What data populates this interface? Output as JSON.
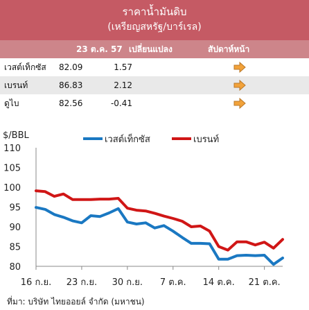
{
  "table": {
    "title": "ราคาน้ำมันดิบ",
    "subtitle": "(เหรียญสหรัฐ/บาร์เรล)",
    "headers": {
      "date": "23 ต.ค. 57",
      "change": "เปลี่ยนแปลง",
      "next_week": "สัปดาห์หน้า"
    },
    "rows": [
      {
        "name": "เวสต์เท็กซัส",
        "value": "82.09",
        "change": "1.57",
        "trend": "right-arrow"
      },
      {
        "name": "เบรนท์",
        "value": "86.83",
        "change": "2.12",
        "trend": "right-arrow"
      },
      {
        "name": "ดูไบ",
        "value": "82.56",
        "change": "-0.41",
        "trend": "right-arrow"
      }
    ],
    "arrow_color": "#f2a23a"
  },
  "chart_data": {
    "type": "line",
    "ylabel": "$/BBL",
    "ylim": [
      80,
      110
    ],
    "yticks": [
      80,
      85,
      90,
      95,
      100,
      105,
      110
    ],
    "x": [
      "16 ก.ย.",
      "17 ก.ย.",
      "18 ก.ย.",
      "19 ก.ย.",
      "22 ก.ย.",
      "23 ก.ย.",
      "24 ก.ย.",
      "25 ก.ย.",
      "26 ก.ย.",
      "29 ก.ย.",
      "30 ก.ย.",
      "1 ต.ค.",
      "2 ต.ค.",
      "3 ต.ค.",
      "6 ต.ค.",
      "7 ต.ค.",
      "8 ต.ค.",
      "9 ต.ค.",
      "10 ต.ค.",
      "13 ต.ค.",
      "14 ต.ค.",
      "15 ต.ค.",
      "16 ต.ค.",
      "17 ต.ค.",
      "20 ต.ค.",
      "21 ต.ค.",
      "22 ต.ค.",
      "23 ต.ค."
    ],
    "xticks": [
      "16 ก.ย.",
      "23 ก.ย.",
      "30 ก.ย.",
      "7 ต.ค.",
      "14 ต.ค.",
      "21 ต.ค."
    ],
    "series": [
      {
        "name": "เวสต์เท็กซัส",
        "color": "#1a78c2",
        "values": [
          94.9,
          94.4,
          93.1,
          92.4,
          91.5,
          91.0,
          92.8,
          92.6,
          93.5,
          94.6,
          91.2,
          90.7,
          91.0,
          89.7,
          90.3,
          88.9,
          87.3,
          85.8,
          85.8,
          85.7,
          81.8,
          81.8,
          82.7,
          82.8,
          82.7,
          82.8,
          80.5,
          82.1
        ]
      },
      {
        "name": "เบรนท์",
        "color": "#d01616",
        "values": [
          99.1,
          98.9,
          97.7,
          98.3,
          96.9,
          96.9,
          96.9,
          97.0,
          97.0,
          97.2,
          94.7,
          94.2,
          94.0,
          93.4,
          92.7,
          92.1,
          91.4,
          90.0,
          90.2,
          88.9,
          85.0,
          84.1,
          86.2,
          86.2,
          85.4,
          86.1,
          84.6,
          86.8
        ]
      }
    ],
    "legend_position": "top"
  },
  "source": "ที่มา: บริษัท ไทยออยล์ จำกัด (มหาชน)"
}
